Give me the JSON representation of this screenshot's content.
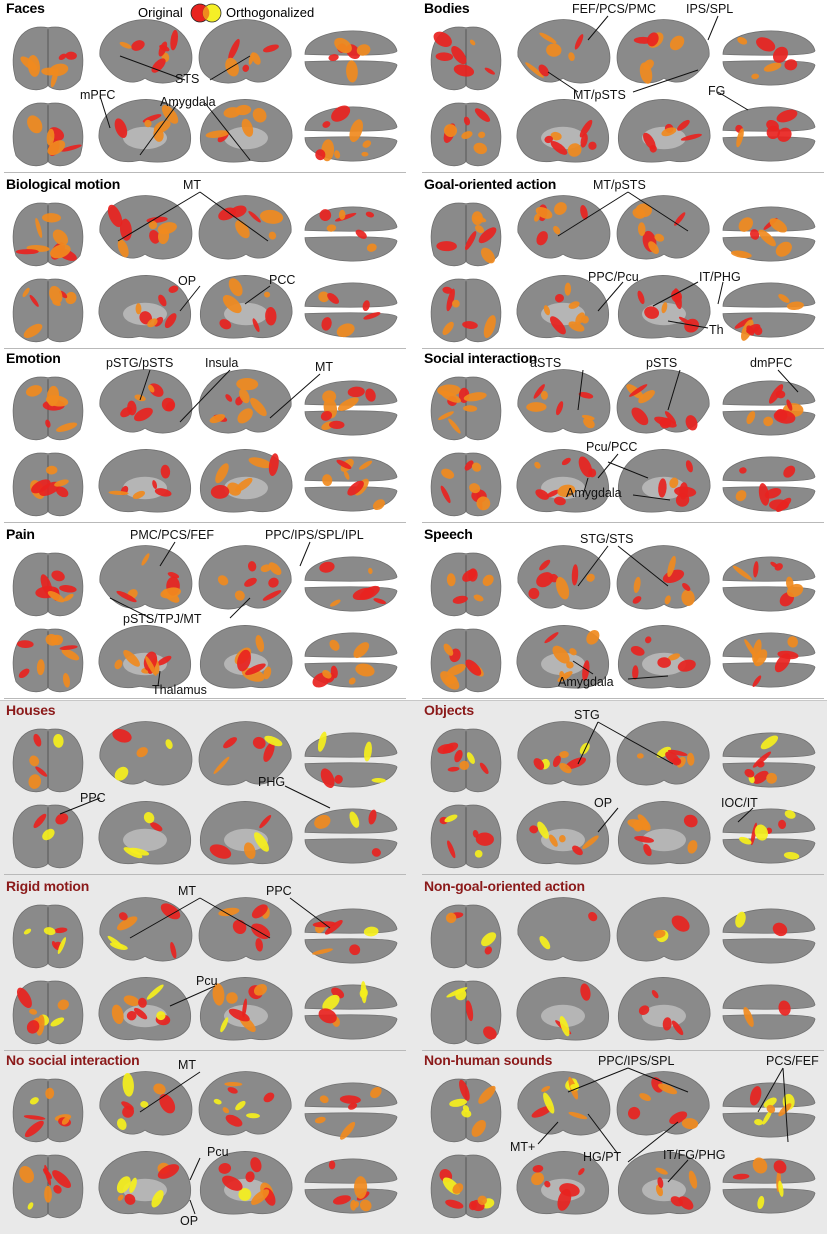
{
  "colors": {
    "original": "#e8231f",
    "orthogonalized": "#f5ef1c",
    "overlap": "#f08a1e",
    "cortex": "#8a8a8a",
    "title_gray_band": "#8b1a1a"
  },
  "legend": {
    "original": "Original",
    "orthogonalized": "Orthogonalized"
  },
  "panels": [
    {
      "title": "Faces",
      "labels": [
        "mPFC",
        "STS",
        "Amygdala"
      ]
    },
    {
      "title": "Bodies",
      "labels": [
        "FEF/PCS/PMC",
        "IPS/SPL",
        "MT/pSTS",
        "FG"
      ]
    },
    {
      "title": "Biological motion",
      "labels": [
        "MT",
        "OP",
        "PCC"
      ]
    },
    {
      "title": "Goal-oriented action",
      "labels": [
        "MT/pSTS",
        "PPC/Pcu",
        "IT/PHG",
        "Th"
      ]
    },
    {
      "title": "Emotion",
      "labels": [
        "pSTG/pSTS",
        "Insula",
        "MT"
      ]
    },
    {
      "title": "Social interaction",
      "labels": [
        "aSTS",
        "pSTS",
        "dmPFC",
        "Pcu/PCC",
        "Amygdala"
      ]
    },
    {
      "title": "Pain",
      "labels": [
        "PMC/PCS/FEF",
        "PPC/IPS/SPL/IPL",
        "pSTS/TPJ/MT",
        "Thalamus"
      ]
    },
    {
      "title": "Speech",
      "labels": [
        "STG/STS",
        "Amygdala"
      ]
    },
    {
      "title": "Houses",
      "labels": [
        "PPC",
        "PHG"
      ]
    },
    {
      "title": "Objects",
      "labels": [
        "STG",
        "OP",
        "IOC/IT"
      ]
    },
    {
      "title": "Rigid motion",
      "labels": [
        "MT",
        "PPC",
        "Pcu"
      ]
    },
    {
      "title": "Non-goal-oriented action",
      "labels": []
    },
    {
      "title": "No social interaction",
      "labels": [
        "MT",
        "Pcu",
        "OP"
      ]
    },
    {
      "title": "Non-human sounds",
      "labels": [
        "PPC/IPS/SPL",
        "PCS/FEF",
        "MT+",
        "HG/PT",
        "IT/FG/PHG"
      ]
    }
  ]
}
